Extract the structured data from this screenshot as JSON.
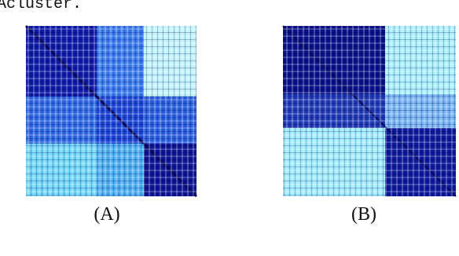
{
  "header_text": "Acluster.",
  "panels": [
    {
      "label": "(A)"
    },
    {
      "label": "(B)"
    }
  ]
}
